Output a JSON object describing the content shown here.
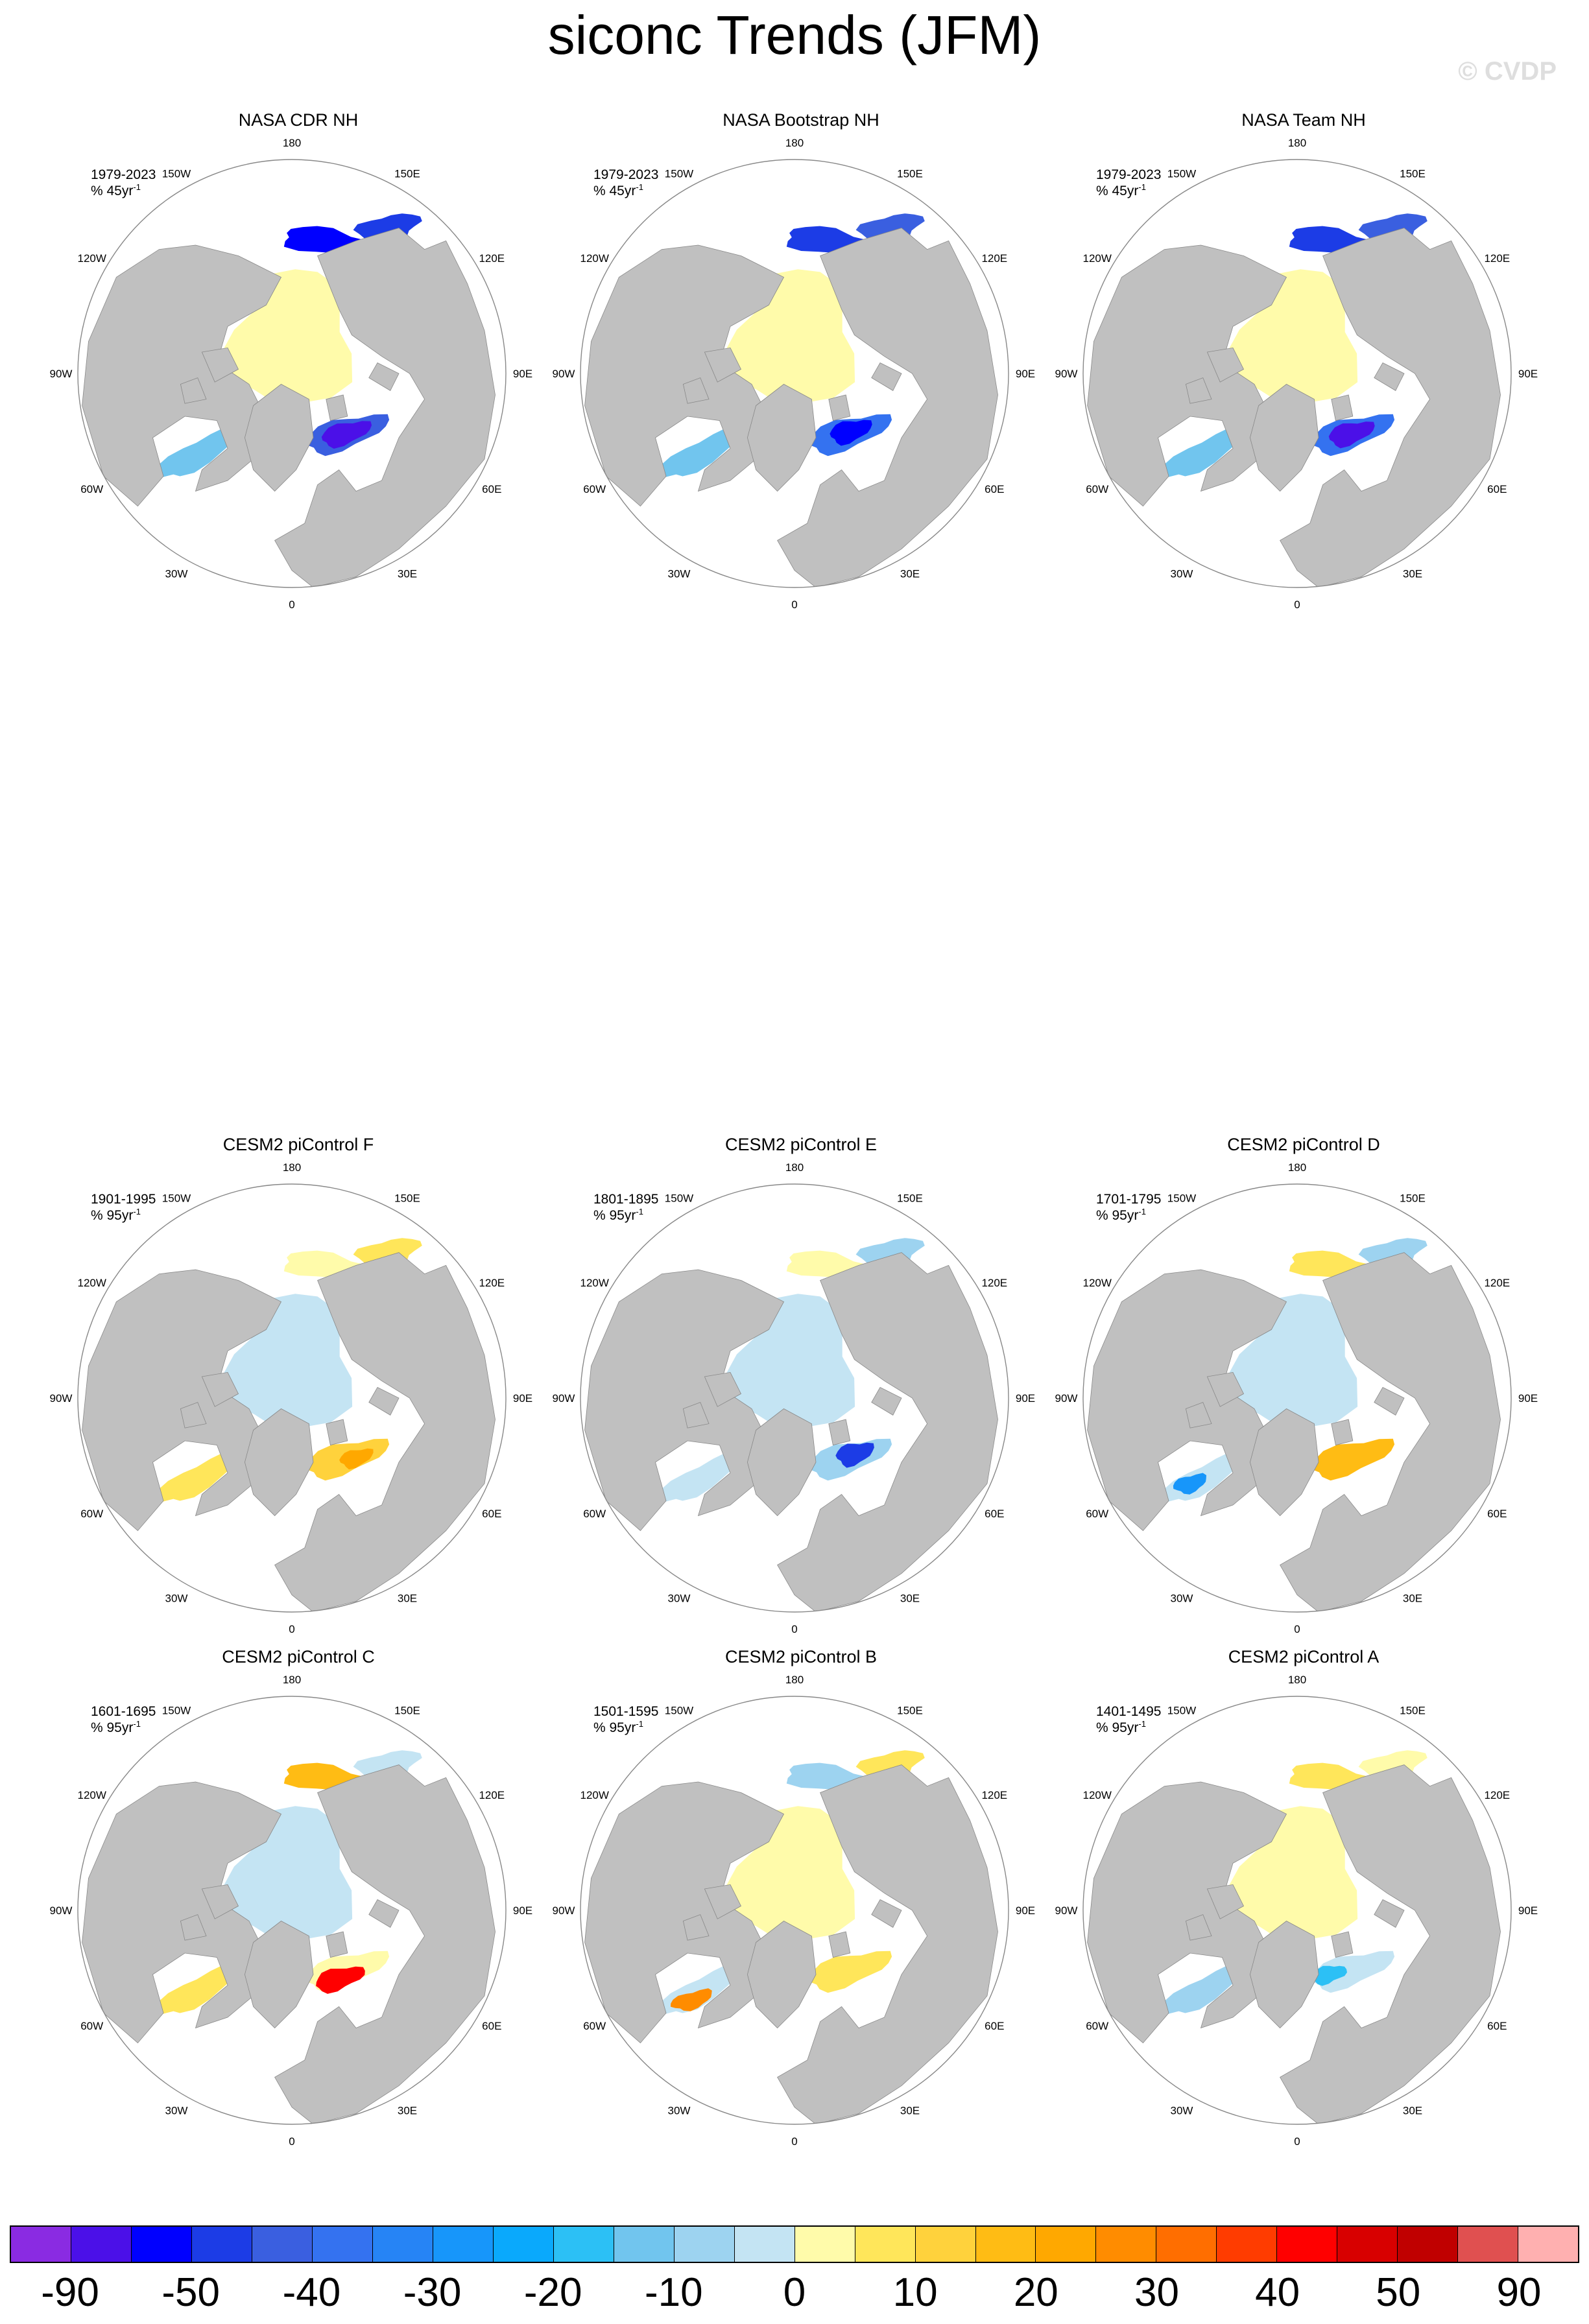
{
  "title": "siconc Trends (JFM)",
  "watermark": "© CVDP",
  "longitude_labels": [
    "180",
    "150E",
    "120E",
    "90E",
    "60E",
    "30E",
    "0",
    "30W",
    "60W",
    "90W",
    "120W",
    "150W"
  ],
  "panels": [
    {
      "title": "NASA CDR NH",
      "period": "1979-2023",
      "units_prefix": "% 45yr",
      "units_exp": "-1",
      "pattern": "obs1"
    },
    {
      "title": "NASA Bootstrap NH",
      "period": "1979-2023",
      "units_prefix": "% 45yr",
      "units_exp": "-1",
      "pattern": "obs2"
    },
    {
      "title": "NASA Team NH",
      "period": "1979-2023",
      "units_prefix": "% 45yr",
      "units_exp": "-1",
      "pattern": "obs3"
    },
    {
      "title": "CESM2 piControl F",
      "period": "1901-1995",
      "units_prefix": "% 95yr",
      "units_exp": "-1",
      "pattern": "F"
    },
    {
      "title": "CESM2 piControl E",
      "period": "1801-1895",
      "units_prefix": "% 95yr",
      "units_exp": "-1",
      "pattern": "E"
    },
    {
      "title": "CESM2 piControl D",
      "period": "1701-1795",
      "units_prefix": "% 95yr",
      "units_exp": "-1",
      "pattern": "D"
    },
    {
      "title": "CESM2 piControl C",
      "period": "1601-1695",
      "units_prefix": "% 95yr",
      "units_exp": "-1",
      "pattern": "C"
    },
    {
      "title": "CESM2 piControl B",
      "period": "1501-1595",
      "units_prefix": "% 95yr",
      "units_exp": "-1",
      "pattern": "B"
    },
    {
      "title": "CESM2 piControl A",
      "period": "1401-1495",
      "units_prefix": "% 95yr",
      "units_exp": "-1",
      "pattern": "A"
    }
  ],
  "colorbar": {
    "colors": [
      "#8a2be2",
      "#4b10e8",
      "#0000ff",
      "#1c3ce6",
      "#3a5fe0",
      "#3472f0",
      "#2684f5",
      "#1796fa",
      "#0aa9fc",
      "#2cc0f5",
      "#71c5ee",
      "#9dd3f0",
      "#c4e4f3",
      "#fffbaa",
      "#ffe65a",
      "#ffd23c",
      "#ffbc14",
      "#ffa800",
      "#ff8c00",
      "#ff6e00",
      "#ff3c00",
      "#ff0000",
      "#d80000",
      "#c00000",
      "#e05050",
      "#ffb0b0"
    ],
    "labels": [
      "-90",
      "-50",
      "-40",
      "-30",
      "-20",
      "-10",
      "0",
      "10",
      "20",
      "30",
      "40",
      "50",
      "90"
    ]
  },
  "legend_colors": {
    "land": "#c0c0c0",
    "ocean": "#ffffff"
  }
}
